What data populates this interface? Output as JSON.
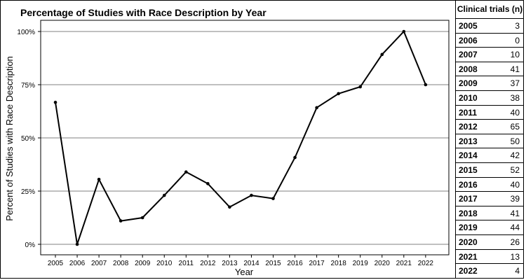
{
  "chart_data": {
    "type": "line",
    "title": "Percentage of Studies with Race Description by Year",
    "xlabel": "Year",
    "ylabel": "Percent of Studies with Race Description",
    "categories": [
      "2005",
      "2006",
      "2007",
      "2008",
      "2009",
      "2010",
      "2011",
      "2012",
      "2013",
      "2014",
      "2015",
      "2016",
      "2017",
      "2018",
      "2019",
      "2020",
      "2021",
      "2022"
    ],
    "values": [
      66.7,
      0,
      30.5,
      11,
      12.5,
      23,
      34,
      28.5,
      17.5,
      23,
      21.5,
      40.8,
      64.2,
      70.8,
      74,
      89.2,
      100,
      75
    ],
    "ylim": [
      0,
      100
    ],
    "yticks": [
      "0%",
      "25%",
      "50%",
      "75%",
      "100%"
    ],
    "ytick_values": [
      0,
      25,
      50,
      75,
      100
    ],
    "grid": true,
    "colors": {
      "line": "#000000",
      "grid": "#808080"
    }
  },
  "table": {
    "header": "Clinical trials (n)",
    "rows": [
      {
        "year": "2005",
        "n": "3"
      },
      {
        "year": "2006",
        "n": "0"
      },
      {
        "year": "2007",
        "n": "10"
      },
      {
        "year": "2008",
        "n": "41"
      },
      {
        "year": "2009",
        "n": "37"
      },
      {
        "year": "2010",
        "n": "38"
      },
      {
        "year": "2011",
        "n": "40"
      },
      {
        "year": "2012",
        "n": "65"
      },
      {
        "year": "2013",
        "n": "50"
      },
      {
        "year": "2014",
        "n": "42"
      },
      {
        "year": "2015",
        "n": "52"
      },
      {
        "year": "2016",
        "n": "40"
      },
      {
        "year": "2017",
        "n": "39"
      },
      {
        "year": "2018",
        "n": "41"
      },
      {
        "year": "2019",
        "n": "44"
      },
      {
        "year": "2020",
        "n": "26"
      },
      {
        "year": "2021",
        "n": "13"
      },
      {
        "year": "2022",
        "n": "4"
      }
    ]
  }
}
